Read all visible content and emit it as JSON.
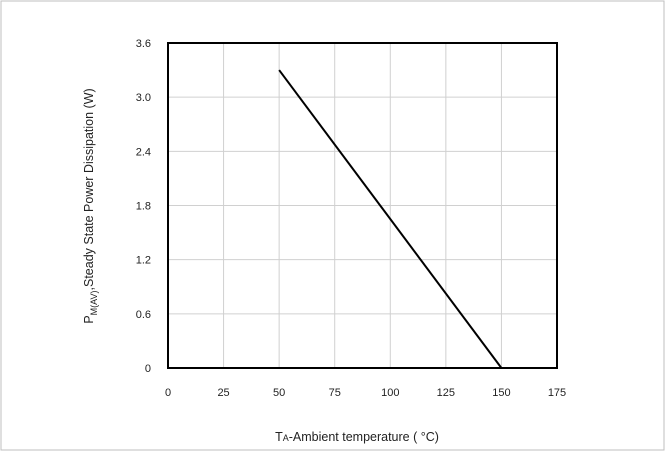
{
  "chart_data": {
    "type": "line",
    "title": "",
    "xlabel": {
      "main": "T",
      "sub": "A",
      "rest": "-Ambient temperature ( °C)"
    },
    "ylabel": {
      "main": "P",
      "sub": "M(AV)",
      "rest": ",Steady State Power Dissipation (W)"
    },
    "xlim": [
      0,
      175
    ],
    "ylim": [
      0,
      3.6
    ],
    "x_ticks": [
      "0",
      "25",
      "50",
      "75",
      "100",
      "125",
      "150",
      "175"
    ],
    "y_ticks": [
      "0",
      "0.6",
      "1.2",
      "1.8",
      "2.4",
      "3.0",
      "3.6"
    ],
    "grid": true,
    "legend": "none",
    "series": [
      {
        "x": [
          50,
          150
        ],
        "y": [
          3.3,
          0
        ]
      }
    ],
    "colors": {
      "line": "#000000",
      "grid": "#d0d0d0",
      "frame": "#000000",
      "outer_border": "#bfbfbf"
    }
  }
}
